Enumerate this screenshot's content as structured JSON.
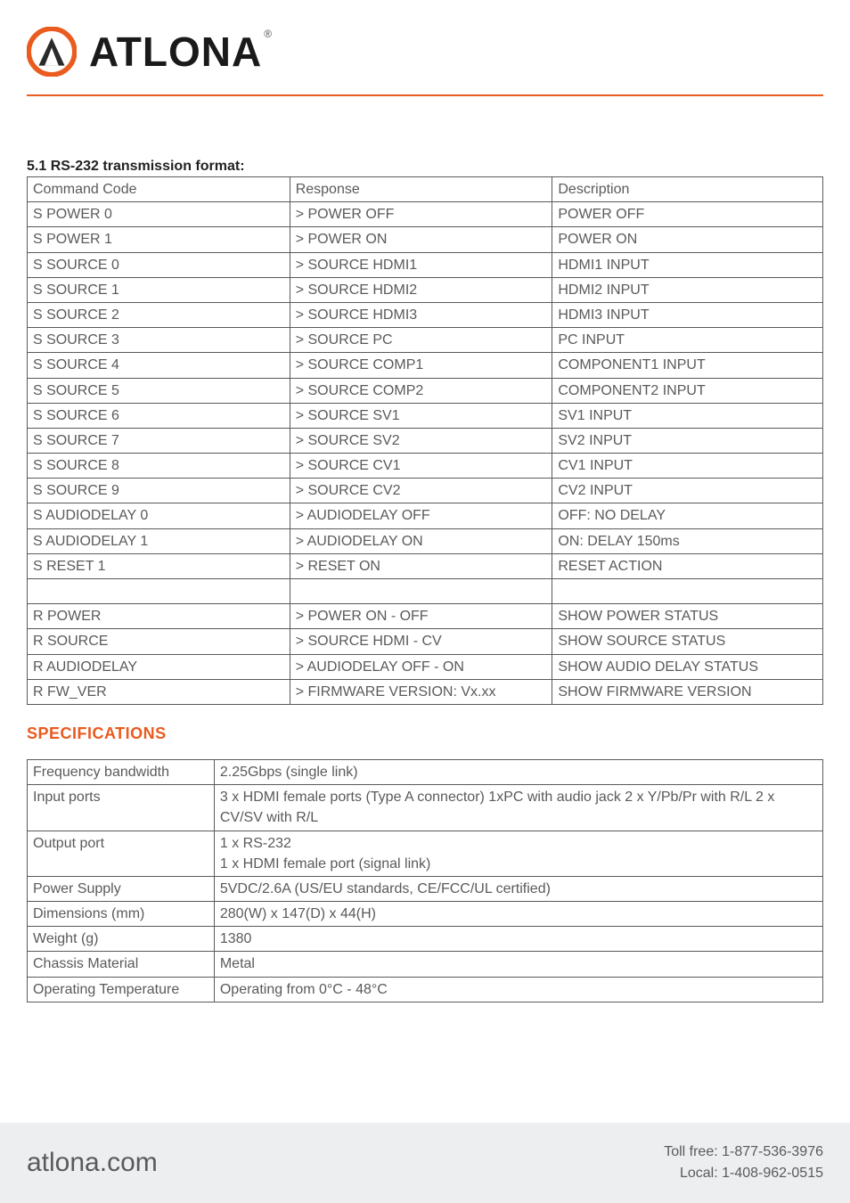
{
  "brand": {
    "name": "ATLONA",
    "logo_ring_color": "#e95b1f",
    "logo_inner_color": "#2a2a2a"
  },
  "colors": {
    "accent": "#e95b1f",
    "text": "#5a5a5a",
    "heading": "#222222",
    "border": "#5a5a5a",
    "footer_bg": "#eceeef",
    "background": "#ffffff"
  },
  "typography": {
    "body_fontsize": 16,
    "heading_fontsize": 16,
    "spec_heading_fontsize": 18,
    "logo_fontsize": 46,
    "footer_left_fontsize": 30,
    "footer_right_fontsize": 16
  },
  "rs232": {
    "heading": "5.1 RS-232 transmission format:",
    "columns": [
      "Command Code",
      "Response",
      "Description"
    ],
    "col_widths_pct": [
      33,
      33,
      34
    ],
    "rows": [
      [
        "S POWER 0",
        "> POWER OFF",
        "POWER OFF"
      ],
      [
        "S POWER 1",
        "> POWER ON",
        "POWER ON"
      ],
      [
        "S SOURCE 0",
        "> SOURCE HDMI1",
        "HDMI1 INPUT"
      ],
      [
        "S SOURCE 1",
        "> SOURCE HDMI2",
        "HDMI2 INPUT"
      ],
      [
        "S SOURCE 2",
        "> SOURCE HDMI3",
        "HDMI3 INPUT"
      ],
      [
        "S SOURCE 3",
        "> SOURCE PC",
        "PC INPUT"
      ],
      [
        "S SOURCE 4",
        "> SOURCE COMP1",
        "COMPONENT1 INPUT"
      ],
      [
        "S SOURCE 5",
        "> SOURCE COMP2",
        "COMPONENT2 INPUT"
      ],
      [
        "S SOURCE 6",
        "> SOURCE SV1",
        "SV1 INPUT"
      ],
      [
        "S SOURCE 7",
        "> SOURCE SV2",
        "SV2 INPUT"
      ],
      [
        "S SOURCE 8",
        "> SOURCE CV1",
        "CV1 INPUT"
      ],
      [
        "S SOURCE 9",
        "> SOURCE CV2",
        "CV2 INPUT"
      ],
      [
        "S AUDIODELAY 0",
        "> AUDIODELAY OFF",
        "OFF: NO DELAY"
      ],
      [
        "S AUDIODELAY 1",
        "> AUDIODELAY ON",
        "ON: DELAY 150ms"
      ],
      [
        "S RESET 1",
        "> RESET ON",
        "RESET ACTION"
      ],
      [
        "",
        "",
        ""
      ],
      [
        "R POWER",
        "> POWER ON - OFF",
        "SHOW POWER STATUS"
      ],
      [
        "R SOURCE",
        "> SOURCE HDMI - CV",
        "SHOW SOURCE STATUS"
      ],
      [
        "R AUDIODELAY",
        "> AUDIODELAY OFF - ON",
        "SHOW AUDIO DELAY STATUS"
      ],
      [
        "R FW_VER",
        "> FIRMWARE VERSION: Vx.xx",
        "SHOW FIRMWARE VERSION"
      ]
    ]
  },
  "specs": {
    "heading": "SPECIFICATIONS",
    "col_widths_pct": [
      23.5,
      76.5
    ],
    "rows": [
      [
        "Frequency bandwidth",
        "2.25Gbps (single link)"
      ],
      [
        "Input ports",
        "3 x HDMI female ports (Type A connector) 1xPC with audio jack 2 x Y/Pb/Pr with R/L 2 x CV/SV with R/L"
      ],
      [
        "Output port",
        "1 x RS-232\n1 x HDMI female port (signal link)"
      ],
      [
        "Power Supply",
        "5VDC/2.6A (US/EU standards, CE/FCC/UL certified)"
      ],
      [
        "Dimensions (mm)",
        "280(W) x 147(D) x 44(H)"
      ],
      [
        "Weight (g)",
        "1380"
      ],
      [
        "Chassis Material",
        "Metal"
      ],
      [
        "Operating Temperature",
        "Operating from 0°C - 48°C"
      ]
    ]
  },
  "footer": {
    "site": "atlona.com",
    "toll_free_label": "Toll free: ",
    "toll_free": "1-877-536-3976",
    "local_label": "Local: ",
    "local": "1-408-962-0515"
  }
}
